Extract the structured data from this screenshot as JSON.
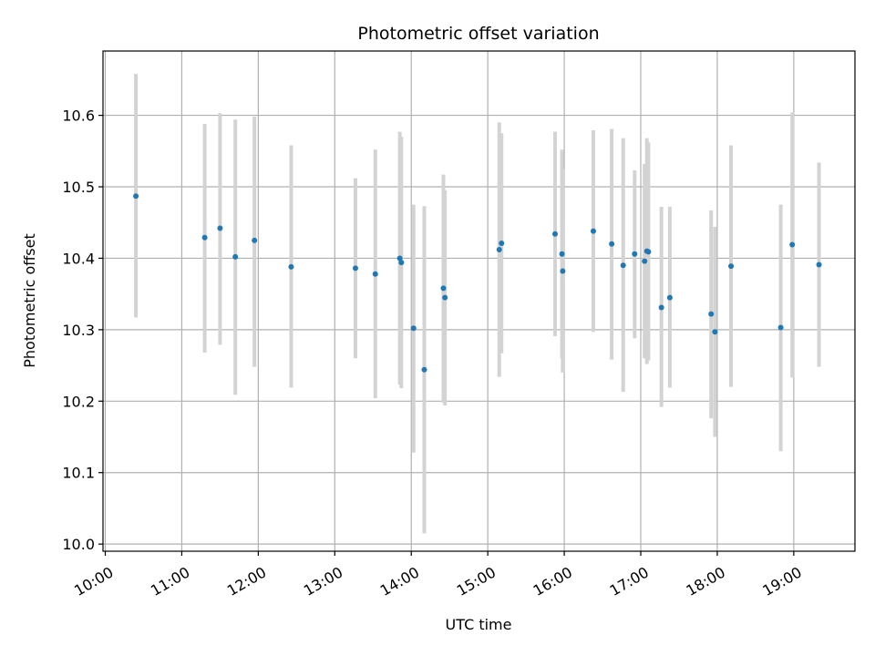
{
  "chart_data": {
    "type": "scatter",
    "title": "Photometric offset variation",
    "xlabel": "UTC time",
    "ylabel": "Photometric offset",
    "grid": true,
    "xlim": [
      9.97,
      19.8
    ],
    "ylim": [
      9.99,
      10.69
    ],
    "x_ticks": [
      {
        "value": 10,
        "label": "10:00"
      },
      {
        "value": 11,
        "label": "11:00"
      },
      {
        "value": 12,
        "label": "12:00"
      },
      {
        "value": 13,
        "label": "13:00"
      },
      {
        "value": 14,
        "label": "14:00"
      },
      {
        "value": 15,
        "label": "15:00"
      },
      {
        "value": 16,
        "label": "16:00"
      },
      {
        "value": 17,
        "label": "17:00"
      },
      {
        "value": 18,
        "label": "18:00"
      },
      {
        "value": 19,
        "label": "19:00"
      }
    ],
    "y_ticks": [
      {
        "value": 10.0,
        "label": "10.0"
      },
      {
        "value": 10.1,
        "label": "10.1"
      },
      {
        "value": 10.2,
        "label": "10.2"
      },
      {
        "value": 10.3,
        "label": "10.3"
      },
      {
        "value": 10.4,
        "label": "10.4"
      },
      {
        "value": 10.5,
        "label": "10.5"
      },
      {
        "value": 10.6,
        "label": "10.6"
      }
    ],
    "colors": {
      "marker": "#1f77b4",
      "errorbar": "#d3d3d3",
      "grid": "#b0b0b0"
    },
    "points": [
      {
        "x": 10.4,
        "y": 10.487,
        "lo": 10.317,
        "hi": 10.658
      },
      {
        "x": 11.3,
        "y": 10.429,
        "lo": 10.268,
        "hi": 10.588
      },
      {
        "x": 11.5,
        "y": 10.442,
        "lo": 10.279,
        "hi": 10.603
      },
      {
        "x": 11.7,
        "y": 10.402,
        "lo": 10.209,
        "hi": 10.594
      },
      {
        "x": 11.95,
        "y": 10.425,
        "lo": 10.248,
        "hi": 10.598
      },
      {
        "x": 12.43,
        "y": 10.388,
        "lo": 10.219,
        "hi": 10.558
      },
      {
        "x": 13.27,
        "y": 10.386,
        "lo": 10.26,
        "hi": 10.512
      },
      {
        "x": 13.53,
        "y": 10.378,
        "lo": 10.204,
        "hi": 10.552
      },
      {
        "x": 13.85,
        "y": 10.4,
        "lo": 10.223,
        "hi": 10.577
      },
      {
        "x": 13.87,
        "y": 10.394,
        "lo": 10.218,
        "hi": 10.57
      },
      {
        "x": 14.03,
        "y": 10.302,
        "lo": 10.128,
        "hi": 10.475
      },
      {
        "x": 14.17,
        "y": 10.244,
        "lo": 10.015,
        "hi": 10.473
      },
      {
        "x": 14.42,
        "y": 10.358,
        "lo": 10.198,
        "hi": 10.517
      },
      {
        "x": 14.44,
        "y": 10.345,
        "lo": 10.194,
        "hi": 10.495
      },
      {
        "x": 15.15,
        "y": 10.412,
        "lo": 10.234,
        "hi": 10.59
      },
      {
        "x": 15.18,
        "y": 10.421,
        "lo": 10.267,
        "hi": 10.575
      },
      {
        "x": 15.88,
        "y": 10.434,
        "lo": 10.291,
        "hi": 10.577
      },
      {
        "x": 15.97,
        "y": 10.406,
        "lo": 10.26,
        "hi": 10.552
      },
      {
        "x": 15.98,
        "y": 10.382,
        "lo": 10.24,
        "hi": 10.525
      },
      {
        "x": 16.38,
        "y": 10.438,
        "lo": 10.297,
        "hi": 10.579
      },
      {
        "x": 16.62,
        "y": 10.42,
        "lo": 10.258,
        "hi": 10.581
      },
      {
        "x": 16.77,
        "y": 10.39,
        "lo": 10.213,
        "hi": 10.568
      },
      {
        "x": 16.92,
        "y": 10.406,
        "lo": 10.288,
        "hi": 10.523
      },
      {
        "x": 17.05,
        "y": 10.396,
        "lo": 10.26,
        "hi": 10.532
      },
      {
        "x": 17.08,
        "y": 10.41,
        "lo": 10.252,
        "hi": 10.568
      },
      {
        "x": 17.1,
        "y": 10.409,
        "lo": 10.257,
        "hi": 10.562
      },
      {
        "x": 17.27,
        "y": 10.331,
        "lo": 10.192,
        "hi": 10.472
      },
      {
        "x": 17.38,
        "y": 10.345,
        "lo": 10.219,
        "hi": 10.472
      },
      {
        "x": 17.92,
        "y": 10.322,
        "lo": 10.176,
        "hi": 10.467
      },
      {
        "x": 17.97,
        "y": 10.297,
        "lo": 10.15,
        "hi": 10.444
      },
      {
        "x": 18.18,
        "y": 10.389,
        "lo": 10.22,
        "hi": 10.558
      },
      {
        "x": 18.83,
        "y": 10.303,
        "lo": 10.13,
        "hi": 10.475
      },
      {
        "x": 18.98,
        "y": 10.419,
        "lo": 10.233,
        "hi": 10.604
      },
      {
        "x": 19.33,
        "y": 10.391,
        "lo": 10.248,
        "hi": 10.534
      }
    ]
  }
}
